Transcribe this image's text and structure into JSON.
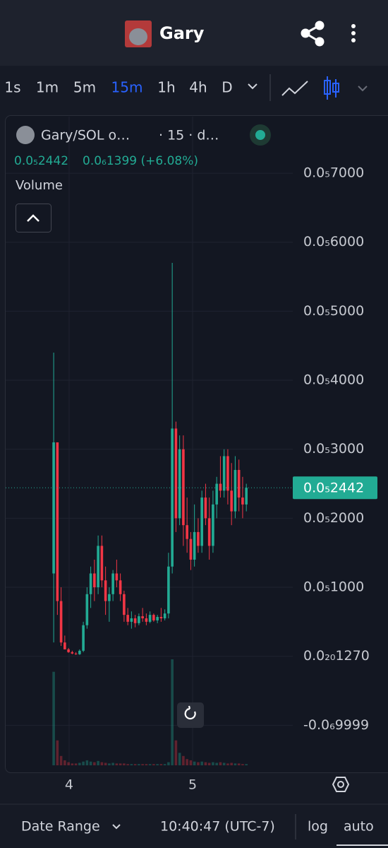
{
  "header": {
    "title": "Gary"
  },
  "toolbar": {
    "intervals": [
      "1s",
      "1m",
      "5m",
      "15m",
      "1h",
      "4h",
      "D"
    ],
    "active": "15m"
  },
  "chart_data": {
    "type": "candlestick",
    "symbol": "Gary/SOL o…",
    "interval": "· 15 · d…",
    "ohlc_legend": [
      "0.0₅2442",
      "0.0₆1399 (+6.08%)"
    ],
    "volume_label": "Volume",
    "up_color": "#22ab94",
    "down_color": "#f23645",
    "x": [
      3.875,
      3.905,
      3.935,
      3.965,
      3.995,
      4.025,
      4.055,
      4.085,
      4.115,
      4.145,
      4.175,
      4.205,
      4.235,
      4.265,
      4.295,
      4.325,
      4.355,
      4.385,
      4.415,
      4.445,
      4.475,
      4.505,
      4.535,
      4.565,
      4.595,
      4.625,
      4.655,
      4.685,
      4.715,
      4.745,
      4.775,
      4.805,
      4.835,
      4.865,
      4.895,
      4.925,
      4.955,
      4.985,
      5.015,
      5.045,
      5.075,
      5.105,
      5.135,
      5.165,
      5.195,
      5.225,
      5.255,
      5.285,
      5.315,
      5.345,
      5.375,
      5.405,
      5.435
    ],
    "open": [
      1.2e-06,
      3.1e-06,
      8e-07,
      2e-07,
      1e-07,
      6e-08,
      4e-08,
      3e-08,
      8e-08,
      4.5e-07,
      9e-07,
      1.2e-06,
      1e-06,
      1.6e-06,
      1.1e-06,
      8e-07,
      9e-07,
      1.2e-06,
      1.1e-06,
      9e-07,
      6e-07,
      5e-07,
      5.5e-07,
      4.8e-07,
      5.8e-07,
      5.5e-07,
      5e-07,
      6e-07,
      5.2e-07,
      5.7e-07,
      5.5e-07,
      6.2e-07,
      1.3e-06,
      3.3e-06,
      2e-06,
      3e-06,
      1.9e-06,
      1.7e-06,
      1.4e-06,
      1.8e-06,
      1.6e-06,
      2.3e-06,
      2e-06,
      1.6e-06,
      2.2e-06,
      2.5e-06,
      2.4e-06,
      2.9e-06,
      2.4e-06,
      2.1e-06,
      2.7e-06,
      2.3e-06,
      2.2e-06
    ],
    "high": [
      4.4e-06,
      3.1e-06,
      1e-06,
      3e-07,
      1.2e-07,
      8e-08,
      6e-08,
      1e-07,
      5e-07,
      1e-06,
      1.3e-06,
      1.4e-06,
      1.75e-06,
      1.75e-06,
      1.3e-06,
      1e-06,
      1.25e-06,
      1.4e-06,
      1.2e-06,
      9.5e-07,
      7e-07,
      6.5e-07,
      6e-07,
      6.2e-07,
      7e-07,
      6.2e-07,
      6.5e-07,
      6.2e-07,
      6e-07,
      7e-07,
      6.8e-07,
      1.5e-06,
      5.7e-06,
      3.4e-06,
      3.2e-06,
      3.2e-06,
      2.3e-06,
      1.8e-06,
      2.2e-06,
      2e-06,
      2.4e-06,
      2.5e-06,
      2.3e-06,
      2.4e-06,
      2.6e-06,
      2.9e-06,
      3e-06,
      3e-06,
      2.8e-06,
      2.9e-06,
      2.85e-06,
      2.6e-06,
      2.5e-06
    ],
    "low": [
      2e-07,
      6e-07,
      1.5e-07,
      1e-07,
      5e-08,
      3e-08,
      2e-08,
      2e-08,
      6e-08,
      4e-07,
      7e-07,
      8e-07,
      9e-07,
      1e-06,
      6e-07,
      5e-07,
      8e-07,
      1e-06,
      8e-07,
      5e-07,
      4.5e-07,
      4e-07,
      4.2e-07,
      4.5e-07,
      5e-07,
      4.5e-07,
      4.8e-07,
      5e-07,
      4.8e-07,
      5e-07,
      5.2e-07,
      5.5e-07,
      1.2e-06,
      1.8e-06,
      1.9e-06,
      1.6e-06,
      1.5e-06,
      1.25e-06,
      1.3e-06,
      1.5e-06,
      1.5e-06,
      1.9e-06,
      1.4e-06,
      1.5e-06,
      2e-06,
      2.3e-06,
      2.3e-06,
      2.2e-06,
      1.9e-06,
      2e-06,
      2.1e-06,
      2e-06,
      2.1e-06
    ],
    "close": [
      3.1e-06,
      8e-07,
      2e-07,
      1e-07,
      6e-08,
      4e-08,
      3e-08,
      8e-08,
      4.5e-07,
      9e-07,
      1.2e-06,
      1e-06,
      1.6e-06,
      1.1e-06,
      8e-07,
      9e-07,
      1.2e-06,
      1.1e-06,
      9e-07,
      6e-07,
      5e-07,
      5.5e-07,
      4.8e-07,
      5.8e-07,
      5.5e-07,
      5e-07,
      6e-07,
      5.2e-07,
      5.7e-07,
      5.5e-07,
      6.2e-07,
      1.3e-06,
      3.3e-06,
      2e-06,
      3e-06,
      1.9e-06,
      1.7e-06,
      1.4e-06,
      1.8e-06,
      1.6e-06,
      2.3e-06,
      2e-06,
      1.6e-06,
      2.2e-06,
      2.5e-06,
      2.4e-06,
      2.9e-06,
      2.4e-06,
      2.1e-06,
      2.7e-06,
      2.3e-06,
      2.2e-06,
      2.442e-06
    ],
    "volume": [
      150,
      40,
      15,
      8,
      5,
      3,
      3,
      4,
      6,
      8,
      6,
      5,
      7,
      5,
      4,
      3,
      4,
      3,
      3,
      3,
      2,
      2,
      2,
      2,
      2,
      2,
      2,
      2,
      2,
      2,
      2,
      5,
      170,
      40,
      20,
      15,
      10,
      8,
      6,
      5,
      6,
      5,
      4,
      5,
      4,
      5,
      4,
      3,
      4,
      3,
      3,
      2,
      2
    ],
    "xlim": [
      3.486,
      5.811
    ],
    "xticks": [
      4,
      5
    ],
    "ylim": [
      -1.58e-06,
      7.82e-06
    ],
    "yticks": [
      {
        "value": 7e-06,
        "label": "0.0₅7000"
      },
      {
        "value": 6e-06,
        "label": "0.0₅6000"
      },
      {
        "value": 5e-06,
        "label": "0.0₅5000"
      },
      {
        "value": 4e-06,
        "label": "0.0₅4000"
      },
      {
        "value": 3e-06,
        "label": "0.0₅3000"
      },
      {
        "value": 2e-06,
        "label": "0.0₅2000"
      },
      {
        "value": 1e-06,
        "label": "0.0₅1000"
      },
      {
        "value": 1.27e-21,
        "label": "0.0₂₀1270"
      },
      {
        "value": -9.999e-07,
        "label": "-0.0₆9999"
      }
    ],
    "grid": true
  },
  "footer": {
    "date_range": "Date Range",
    "clock": "10:40:47 (UTC-7)",
    "log": "log",
    "auto": "auto"
  }
}
